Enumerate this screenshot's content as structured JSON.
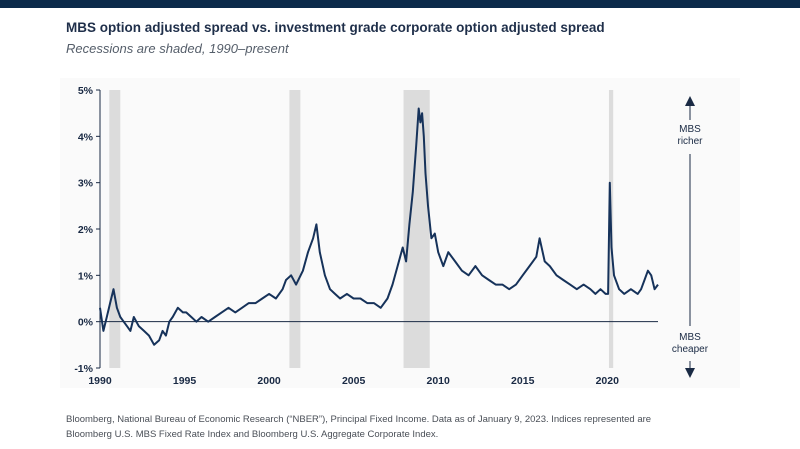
{
  "header": {
    "title": "MBS option adjusted spread vs. investment grade corporate option adjusted spread",
    "subtitle": "Recessions are shaded, 1990–present"
  },
  "footnote": {
    "line1": "Bloomberg, National Bureau of Economic Research (“NBER”), Principal Fixed Income. Data as of January 9, 2023. Indices represented are",
    "line2": "Bloomberg U.S. MBS Fixed Rate Index and Bloomberg U.S. Aggregate Corporate Index."
  },
  "colors": {
    "line": "#16325a",
    "recession": "#dcdcdc",
    "axis": "#1a2a44",
    "background": "#ffffff",
    "header_bar": "#0b2a4a"
  },
  "chart_data": {
    "type": "line",
    "xlim": [
      1990,
      2023
    ],
    "ylim": [
      -1,
      5
    ],
    "xticks": [
      1990,
      1995,
      2000,
      2005,
      2010,
      2015,
      2020
    ],
    "xtick_labels": [
      "1990",
      "1995",
      "2000",
      "2005",
      "2010",
      "2015",
      "2020"
    ],
    "yticks": [
      -1,
      0,
      1,
      2,
      3,
      4,
      5
    ],
    "ytick_labels": [
      "-1%",
      "0%",
      "1%",
      "2%",
      "3%",
      "4%",
      "5%"
    ],
    "grid": false,
    "recessions": [
      [
        1990.55,
        1991.2
      ],
      [
        2001.2,
        2001.85
      ],
      [
        2007.95,
        2009.5
      ],
      [
        2020.1,
        2020.35
      ]
    ],
    "annotations": {
      "upper": [
        "MBS",
        "richer"
      ],
      "lower": [
        "MBS",
        "cheaper"
      ]
    },
    "series": [
      {
        "x": [
          1990.0,
          1990.2,
          1990.4,
          1990.6,
          1990.8,
          1991.0,
          1991.2,
          1991.4,
          1991.6,
          1991.8,
          1992.0,
          1992.3,
          1992.6,
          1992.9,
          1993.2,
          1993.5,
          1993.7,
          1993.9,
          1994.1,
          1994.3,
          1994.6,
          1994.9,
          1995.1,
          1995.4,
          1995.7,
          1996.0,
          1996.4,
          1996.8,
          1997.2,
          1997.6,
          1998.0,
          1998.4,
          1998.8,
          1999.2,
          1999.6,
          2000.0,
          2000.4,
          2000.8,
          2001.0,
          2001.3,
          2001.6,
          2002.0,
          2002.3,
          2002.6,
          2002.8,
          2003.0,
          2003.3,
          2003.6,
          2003.9,
          2004.2,
          2004.6,
          2005.0,
          2005.4,
          2005.8,
          2006.2,
          2006.6,
          2007.0,
          2007.3,
          2007.6,
          2007.9,
          2008.1,
          2008.3,
          2008.5,
          2008.7,
          2008.85,
          2008.95,
          2009.05,
          2009.15,
          2009.25,
          2009.4,
          2009.6,
          2009.8,
          2010.0,
          2010.3,
          2010.6,
          2011.0,
          2011.4,
          2011.8,
          2012.2,
          2012.6,
          2013.0,
          2013.4,
          2013.8,
          2014.2,
          2014.6,
          2015.0,
          2015.4,
          2015.8,
          2016.0,
          2016.3,
          2016.6,
          2017.0,
          2017.4,
          2017.8,
          2018.2,
          2018.6,
          2019.0,
          2019.3,
          2019.6,
          2019.9,
          2020.05,
          2020.15,
          2020.25,
          2020.4,
          2020.7,
          2021.0,
          2021.4,
          2021.8,
          2022.0,
          2022.2,
          2022.4,
          2022.6,
          2022.8,
          2023.0
        ],
        "y": [
          0.3,
          -0.2,
          0.1,
          0.4,
          0.7,
          0.3,
          0.1,
          0.0,
          -0.1,
          -0.2,
          0.1,
          -0.1,
          -0.2,
          -0.3,
          -0.5,
          -0.4,
          -0.2,
          -0.3,
          0.0,
          0.1,
          0.3,
          0.2,
          0.2,
          0.1,
          0.0,
          0.1,
          0.0,
          0.1,
          0.2,
          0.3,
          0.2,
          0.3,
          0.4,
          0.4,
          0.5,
          0.6,
          0.5,
          0.7,
          0.9,
          1.0,
          0.8,
          1.1,
          1.5,
          1.8,
          2.1,
          1.5,
          1.0,
          0.7,
          0.6,
          0.5,
          0.6,
          0.5,
          0.5,
          0.4,
          0.4,
          0.3,
          0.5,
          0.8,
          1.2,
          1.6,
          1.3,
          2.1,
          2.8,
          3.8,
          4.6,
          4.3,
          4.5,
          4.0,
          3.2,
          2.5,
          1.8,
          1.9,
          1.5,
          1.2,
          1.5,
          1.3,
          1.1,
          1.0,
          1.2,
          1.0,
          0.9,
          0.8,
          0.8,
          0.7,
          0.8,
          1.0,
          1.2,
          1.4,
          1.8,
          1.3,
          1.2,
          1.0,
          0.9,
          0.8,
          0.7,
          0.8,
          0.7,
          0.6,
          0.7,
          0.6,
          0.6,
          3.0,
          1.6,
          1.0,
          0.7,
          0.6,
          0.7,
          0.6,
          0.7,
          0.9,
          1.1,
          1.0,
          0.7,
          0.8
        ]
      }
    ]
  }
}
